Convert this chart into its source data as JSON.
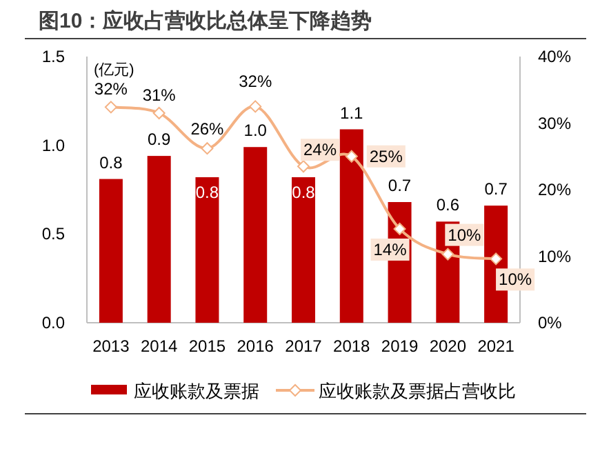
{
  "chart_data": {
    "type": "bar",
    "title": "图10：应收占营收比总体呈下降趋势",
    "ylabel": "(亿元)",
    "categories": [
      "2013",
      "2014",
      "2015",
      "2016",
      "2017",
      "2018",
      "2019",
      "2020",
      "2021"
    ],
    "ylim": [
      0,
      1.5
    ],
    "yticks": [
      {
        "value": 0,
        "label": "0.0"
      },
      {
        "value": 0.5,
        "label": "0.5"
      },
      {
        "value": 1,
        "label": "1.0"
      },
      {
        "value": 1.5,
        "label": "1.5"
      }
    ],
    "y2lim": [
      0,
      40
    ],
    "y2ticks": [
      {
        "value": 0,
        "label": "0%"
      },
      {
        "value": 10,
        "label": "10%"
      },
      {
        "value": 20,
        "label": "20%"
      },
      {
        "value": 30,
        "label": "30%"
      },
      {
        "value": 40,
        "label": "40%"
      }
    ],
    "grid": false,
    "legend": "bottom",
    "series": [
      {
        "name": "应收账款及票据",
        "color": "#c00000",
        "values": [
          0.81,
          0.94,
          0.82,
          0.99,
          0.82,
          1.09,
          0.68,
          0.57,
          0.66
        ],
        "value_labels": [
          "0.8",
          "0.9",
          "0.8",
          "1.0",
          "0.8",
          "1.1",
          "0.7",
          "0.6",
          "0.7"
        ]
      },
      {
        "name": "应收账款及票据占营收比",
        "type": "line",
        "axis": "y2",
        "marker": "diamond",
        "line_style": "solid",
        "color": "#f4b183",
        "values": [
          32.4,
          31.5,
          26.2,
          32.5,
          23.5,
          25.0,
          14.1,
          10.3,
          9.6
        ],
        "value_labels": [
          "32%",
          "31%",
          "26%",
          "32%",
          "24%",
          "25%",
          "14%",
          "10%",
          "10%"
        ]
      }
    ]
  }
}
